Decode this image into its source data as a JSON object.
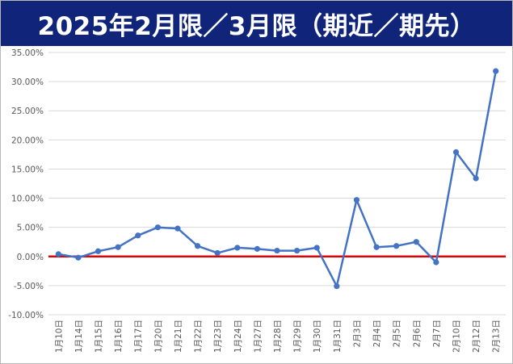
{
  "chart_data": {
    "type": "line",
    "title": "2025年2月限／3月限（期近／期先）",
    "xlabel": "",
    "ylabel": "",
    "ylim": [
      -10,
      35
    ],
    "yticks": [
      35,
      30,
      25,
      20,
      15,
      10,
      5,
      0,
      -5,
      -10
    ],
    "ytick_labels": [
      "35.00%",
      "30.00%",
      "25.00%",
      "20.00%",
      "15.00%",
      "10.00%",
      "5.00%",
      "0.00%",
      "-5.00%",
      "-10.00%"
    ],
    "grid": true,
    "legend": "none",
    "colors": {
      "line": "#4472c4",
      "zero_line": "#e00000",
      "title_bg": "#10257a"
    },
    "categories": [
      "1月10日",
      "1月14日",
      "1月15日",
      "1月16日",
      "1月17日",
      "1月20日",
      "1月21日",
      "1月22日",
      "1月23日",
      "1月24日",
      "1月27日",
      "1月28日",
      "1月29日",
      "1月30日",
      "1月31日",
      "2月3日",
      "2月4日",
      "2月5日",
      "2月6日",
      "2月7日",
      "2月10日",
      "2月12日",
      "2月13日"
    ],
    "series": [
      {
        "values": [
          0.4,
          -0.2,
          0.9,
          1.6,
          3.6,
          5.0,
          4.8,
          1.8,
          0.6,
          1.5,
          1.3,
          1.0,
          1.0,
          1.5,
          -5.1,
          9.7,
          1.6,
          1.8,
          2.5,
          -1.0,
          17.9,
          13.4,
          31.8
        ]
      }
    ],
    "reference_line": {
      "y": 0
    }
  }
}
